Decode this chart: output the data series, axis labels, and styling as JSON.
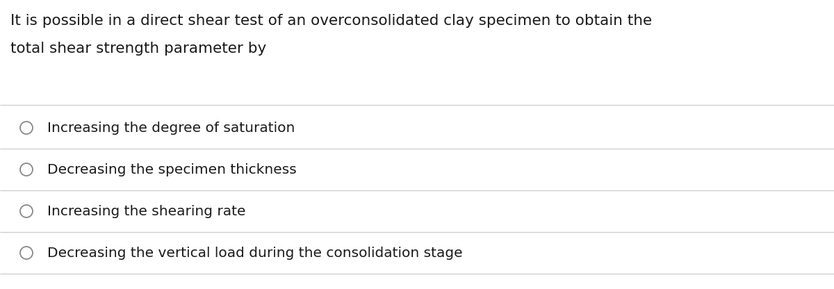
{
  "background_color": "#ffffff",
  "question_text_line1": "It is possible in a direct shear test of an overconsolidated clay specimen to obtain the",
  "question_text_line2": "total shear strength parameter by",
  "options": [
    "Increasing the degree of saturation",
    "Decreasing the specimen thickness",
    "Increasing the shearing rate",
    "Decreasing the vertical load during the consolidation stage"
  ],
  "text_color": "#1a1a1a",
  "line_color": "#cccccc",
  "circle_color": "#888888",
  "font_size_question": 15.5,
  "font_size_options": 14.5,
  "font_family": "DejaVu Sans"
}
